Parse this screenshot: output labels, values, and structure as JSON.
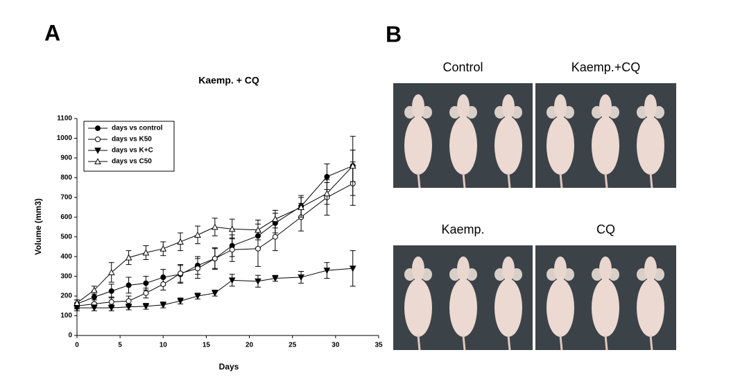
{
  "panels": {
    "a_label": "A",
    "b_label": "B"
  },
  "chart_data": {
    "type": "line",
    "title": "Kaemp. + CQ",
    "x_label": "Days",
    "y_label": "Volume (mm3)",
    "x": [
      0,
      2,
      4,
      6,
      8,
      10,
      12,
      14,
      16,
      18,
      21,
      23,
      26,
      29,
      32
    ],
    "xlim": [
      0,
      35
    ],
    "xticks": [
      0,
      5,
      10,
      15,
      20,
      25,
      30,
      35
    ],
    "ylim": [
      0,
      1100
    ],
    "yticks": [
      0,
      100,
      200,
      300,
      400,
      500,
      600,
      700,
      800,
      900,
      1000,
      1100
    ],
    "grid": false,
    "legend": "upper left",
    "series": [
      {
        "name": "days vs control",
        "color": "#000000",
        "marker": "circle",
        "filled": true,
        "values": [
          160,
          195,
          225,
          255,
          265,
          295,
          310,
          355,
          390,
          455,
          505,
          570,
          655,
          805,
          860
        ],
        "errors": [
          20,
          30,
          35,
          40,
          35,
          40,
          45,
          45,
          50,
          55,
          60,
          50,
          55,
          65,
          80
        ]
      },
      {
        "name": "days vs K50",
        "color": "#000000",
        "marker": "circle",
        "filled": false,
        "values": [
          150,
          160,
          170,
          175,
          215,
          260,
          315,
          340,
          390,
          435,
          440,
          500,
          600,
          700,
          770
        ],
        "errors": [
          15,
          20,
          25,
          25,
          25,
          30,
          45,
          50,
          55,
          60,
          90,
          70,
          70,
          90,
          110
        ]
      },
      {
        "name": "days vs K+C",
        "color": "#000000",
        "marker": "triangle-down",
        "filled": true,
        "values": [
          140,
          140,
          140,
          145,
          148,
          155,
          175,
          200,
          215,
          280,
          275,
          290,
          295,
          330,
          340
        ],
        "errors": [
          15,
          15,
          15,
          15,
          15,
          15,
          15,
          15,
          15,
          30,
          30,
          15,
          30,
          40,
          90
        ]
      },
      {
        "name": "days vs C50",
        "color": "#000000",
        "marker": "triangle-up",
        "filled": false,
        "values": [
          165,
          230,
          320,
          395,
          420,
          440,
          475,
          510,
          550,
          540,
          535,
          590,
          650,
          720,
          860
        ],
        "errors": [
          15,
          20,
          50,
          35,
          35,
          35,
          45,
          45,
          45,
          50,
          50,
          45,
          50,
          55,
          150
        ]
      }
    ]
  },
  "photos": [
    {
      "label": "Control"
    },
    {
      "label": "Kaemp.+CQ"
    },
    {
      "label": "Kaemp."
    },
    {
      "label": "CQ"
    }
  ]
}
